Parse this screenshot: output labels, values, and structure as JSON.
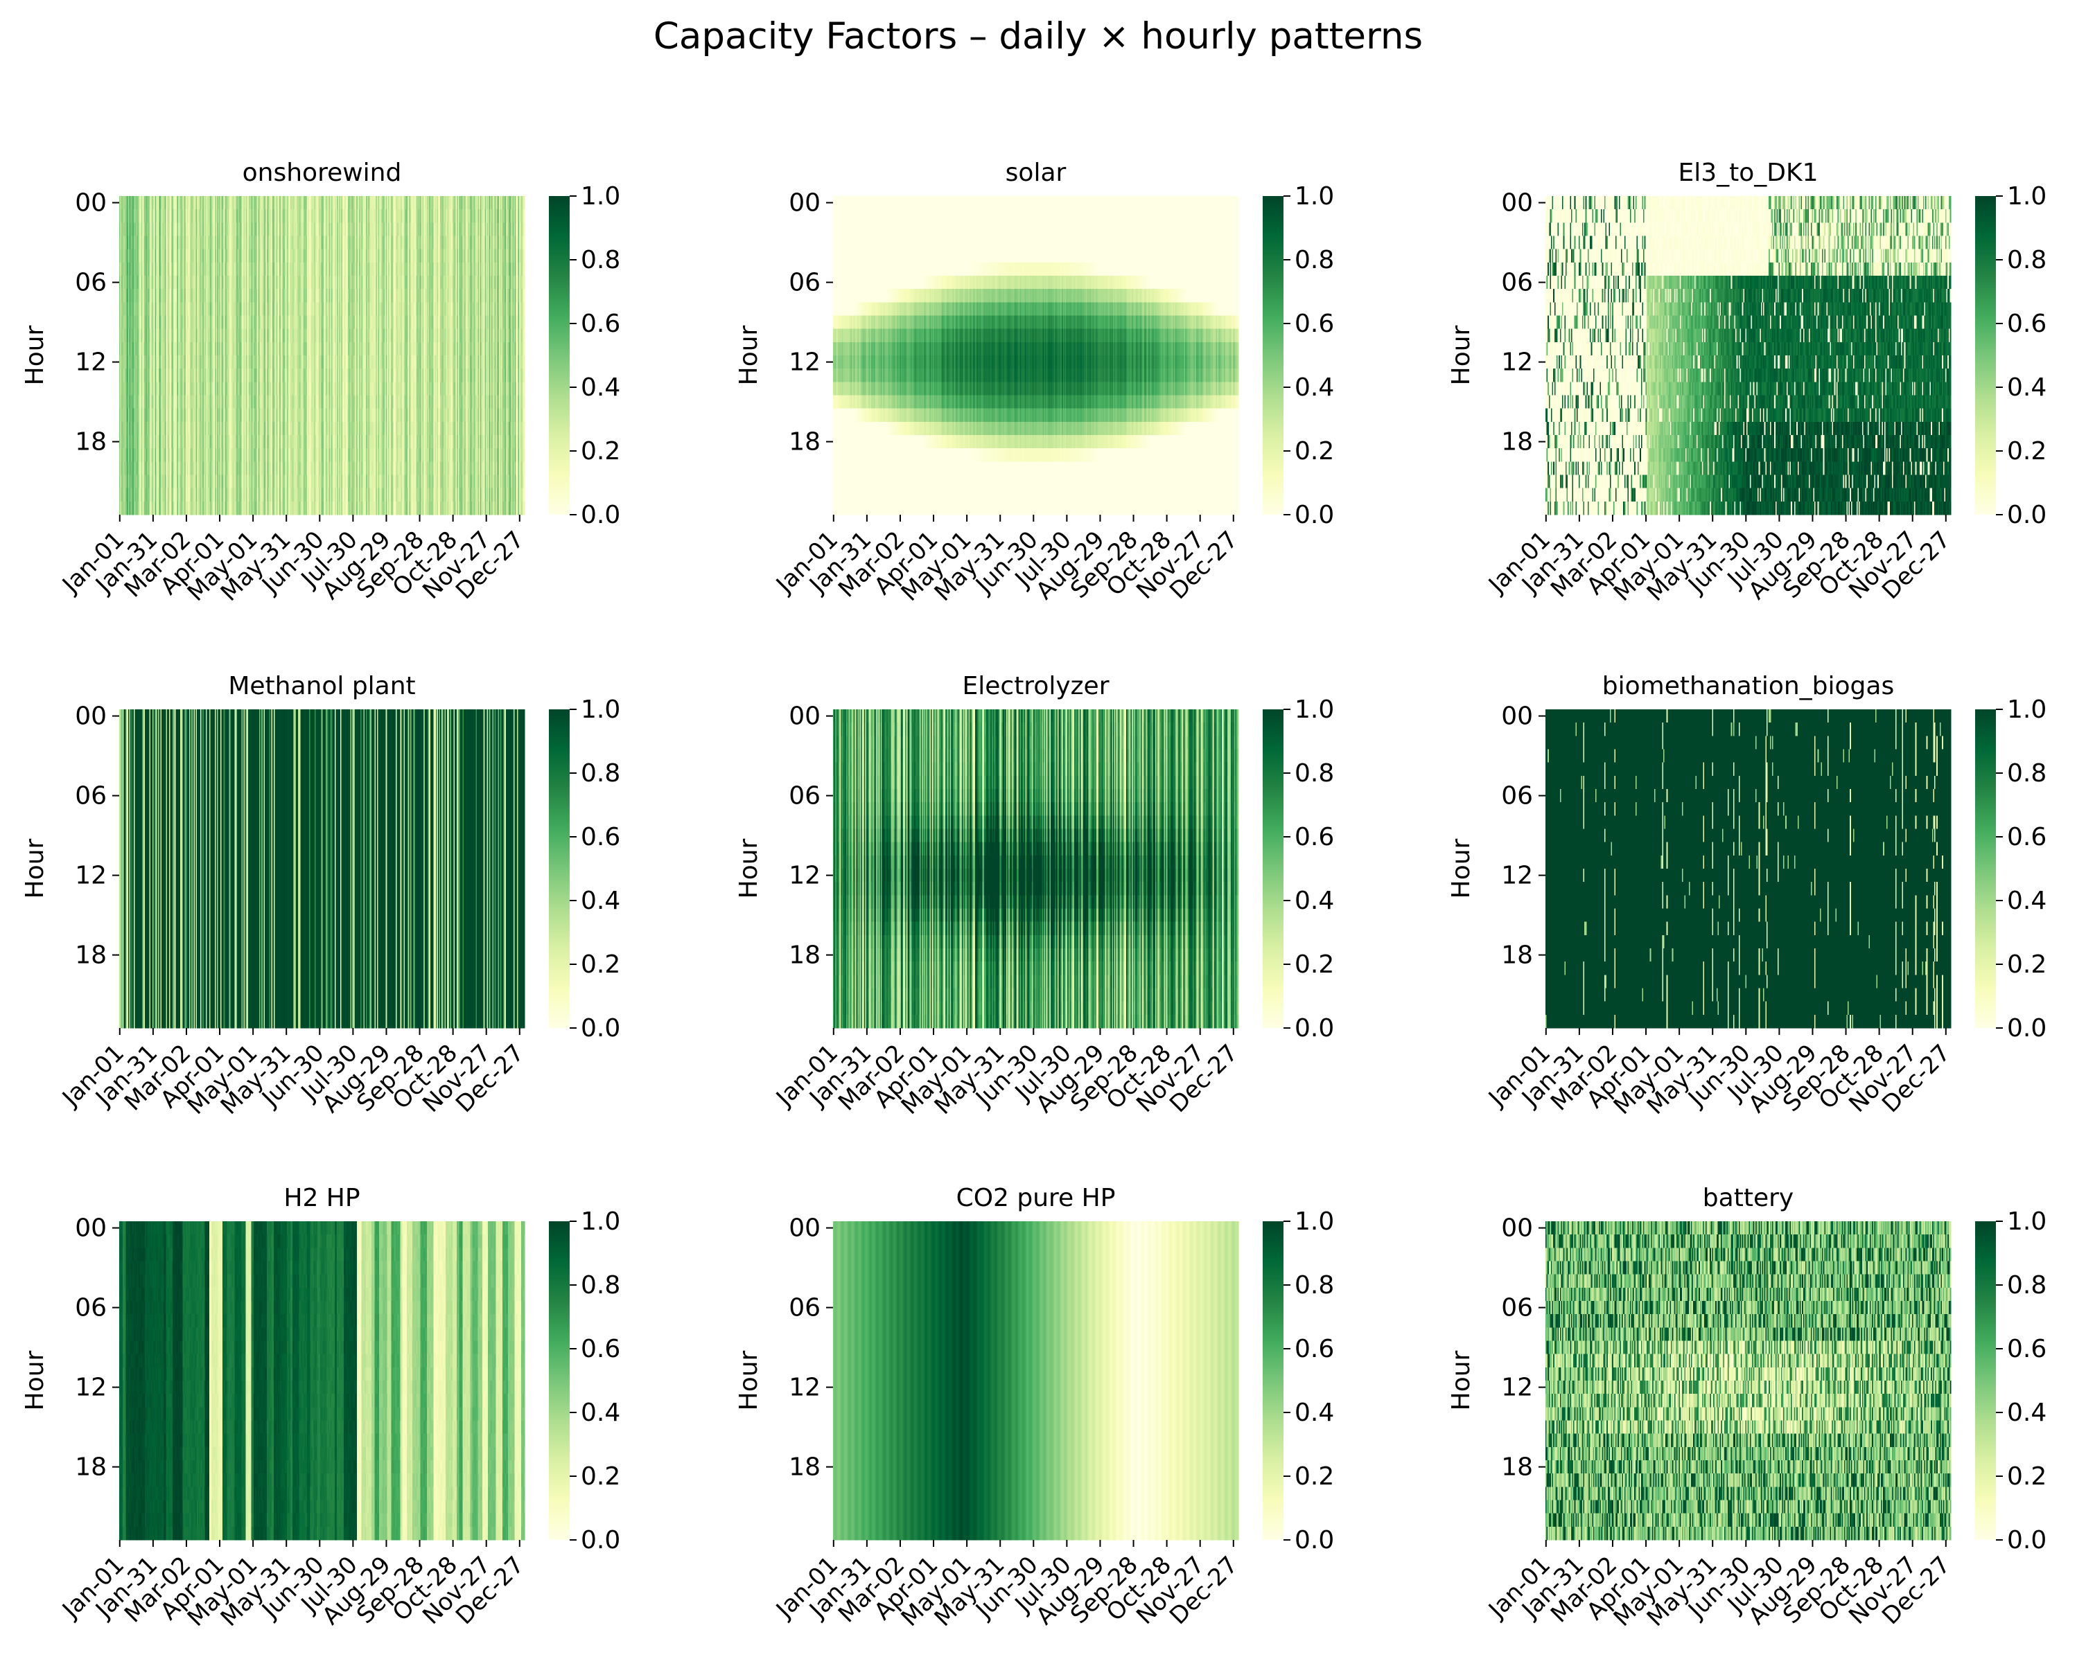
{
  "figure": {
    "title": "Capacity Factors – daily × hourly patterns",
    "colorscale": [
      "#ffffe5",
      "#f7fcb9",
      "#d9f0a3",
      "#addd8e",
      "#78c679",
      "#41ab5d",
      "#238443",
      "#006837",
      "#004529"
    ]
  },
  "chart_data": [
    {
      "type": "heatmap",
      "title": "onshorewind",
      "ylabel": "Hour",
      "xlabel": "",
      "x_ticklabels": [
        "Jan-01",
        "Jan-31",
        "Mar-02",
        "Apr-01",
        "May-01",
        "May-31",
        "Jun-30",
        "Jul-30",
        "Aug-29",
        "Sep-28",
        "Oct-28",
        "Nov-27",
        "Dec-27"
      ],
      "y_ticklabels": [
        "00",
        "06",
        "12",
        "18"
      ],
      "days": 365,
      "hours": 24,
      "zlim": [
        0,
        1
      ],
      "colorbar_ticks": [
        "0.0",
        "0.2",
        "0.4",
        "0.6",
        "0.8",
        "1.0"
      ],
      "pattern": "stochastic daily wind profile, mostly light-to-mid green; values ~0.15–0.65, slightly lower in summer"
    },
    {
      "type": "heatmap",
      "title": "solar",
      "ylabel": "Hour",
      "xlabel": "",
      "x_ticklabels": [
        "Jan-01",
        "Jan-31",
        "Mar-02",
        "Apr-01",
        "May-01",
        "May-31",
        "Jun-30",
        "Jul-30",
        "Aug-29",
        "Sep-28",
        "Oct-28",
        "Nov-27",
        "Dec-27"
      ],
      "y_ticklabels": [
        "00",
        "06",
        "12",
        "18"
      ],
      "days": 365,
      "hours": 24,
      "zlim": [
        0,
        1
      ],
      "colorbar_ticks": [
        "0.0",
        "0.2",
        "0.4",
        "0.6",
        "0.8",
        "1.0"
      ],
      "pattern": "zero at night; daytime peak around hour 12 (~0.6–0.8), longer days and higher peaks in summer"
    },
    {
      "type": "heatmap",
      "title": "El3_to_DK1",
      "ylabel": "Hour",
      "xlabel": "",
      "x_ticklabels": [
        "Jan-01",
        "Jan-31",
        "Mar-02",
        "Apr-01",
        "May-01",
        "May-31",
        "Jun-30",
        "Jul-30",
        "Aug-29",
        "Sep-28",
        "Oct-28",
        "Nov-27",
        "Dec-27"
      ],
      "y_ticklabels": [
        "00",
        "06",
        "12",
        "18"
      ],
      "days": 365,
      "hours": 24,
      "zlim": [
        0,
        1
      ],
      "colorbar_ticks": [
        "0.0",
        "0.2",
        "0.4",
        "0.6",
        "0.8",
        "1.0"
      ],
      "pattern": "sparse flows in first months; from ~April high (0.8–1.0) during hours 06–24, strongest in evening, night hours light"
    },
    {
      "type": "heatmap",
      "title": "Methanol plant",
      "ylabel": "Hour",
      "xlabel": "",
      "x_ticklabels": [
        "Jan-01",
        "Jan-31",
        "Mar-02",
        "Apr-01",
        "May-01",
        "May-31",
        "Jun-30",
        "Jul-30",
        "Aug-29",
        "Sep-28",
        "Oct-28",
        "Nov-27",
        "Dec-27"
      ],
      "y_ticklabels": [
        "00",
        "06",
        "12",
        "18"
      ],
      "days": 365,
      "hours": 24,
      "zlim": [
        0,
        1
      ],
      "colorbar_ticks": [
        "0.0",
        "0.2",
        "0.4",
        "0.6",
        "0.8",
        "1.0"
      ],
      "pattern": "mostly ~1.0 (dark green) with frequent light vertical stripes of low output"
    },
    {
      "type": "heatmap",
      "title": "Electrolyzer",
      "ylabel": "Hour",
      "xlabel": "",
      "x_ticklabels": [
        "Jan-01",
        "Jan-31",
        "Mar-02",
        "Apr-01",
        "May-01",
        "May-31",
        "Jun-30",
        "Jul-30",
        "Aug-29",
        "Sep-28",
        "Oct-28",
        "Nov-27",
        "Dec-27"
      ],
      "y_ticklabels": [
        "00",
        "06",
        "12",
        "18"
      ],
      "days": 365,
      "hours": 24,
      "zlim": [
        0,
        1
      ],
      "colorbar_ticks": [
        "0.0",
        "0.2",
        "0.4",
        "0.6",
        "0.8",
        "1.0"
      ],
      "pattern": "high and variable; darker daytime band around hour 12 in spring/summer, interleaved light stripes"
    },
    {
      "type": "heatmap",
      "title": "biomethanation_biogas",
      "ylabel": "Hour",
      "xlabel": "",
      "x_ticklabels": [
        "Jan-01",
        "Jan-31",
        "Mar-02",
        "Apr-01",
        "May-01",
        "May-31",
        "Jun-30",
        "Jul-30",
        "Aug-29",
        "Sep-28",
        "Oct-28",
        "Nov-27",
        "Dec-27"
      ],
      "y_ticklabels": [
        "00",
        "06",
        "12",
        "18"
      ],
      "days": 365,
      "hours": 24,
      "zlim": [
        0,
        1
      ],
      "colorbar_ticks": [
        "0.0",
        "0.2",
        "0.4",
        "0.6",
        "0.8",
        "1.0"
      ],
      "pattern": "almost entirely 1.0 (darkest green) with sparse thin light gaps"
    },
    {
      "type": "heatmap",
      "title": "H2 HP",
      "ylabel": "Hour",
      "xlabel": "",
      "x_ticklabels": [
        "Jan-01",
        "Jan-31",
        "Mar-02",
        "Apr-01",
        "May-01",
        "May-31",
        "Jun-30",
        "Jul-30",
        "Aug-29",
        "Sep-28",
        "Oct-28",
        "Nov-27",
        "Dec-27"
      ],
      "y_ticklabels": [
        "00",
        "06",
        "12",
        "18"
      ],
      "days": 365,
      "hours": 24,
      "zlim": [
        0,
        1
      ],
      "colorbar_ticks": [
        "0.0",
        "0.2",
        "0.4",
        "0.6",
        "0.8",
        "1.0"
      ],
      "pattern": "multi-day blocks; dark (0.8–1.0) in Jan–Jul, mid/light (0.2–0.6) in Aug–Dec"
    },
    {
      "type": "heatmap",
      "title": "CO2 pure HP",
      "ylabel": "Hour",
      "xlabel": "",
      "x_ticklabels": [
        "Jan-01",
        "Jan-31",
        "Mar-02",
        "Apr-01",
        "May-01",
        "May-31",
        "Jun-30",
        "Jul-30",
        "Aug-29",
        "Sep-28",
        "Oct-28",
        "Nov-27",
        "Dec-27"
      ],
      "y_ticklabels": [
        "00",
        "06",
        "12",
        "18"
      ],
      "days": 365,
      "hours": 24,
      "zlim": [
        0,
        1
      ],
      "colorbar_ticks": [
        "0.0",
        "0.2",
        "0.4",
        "0.6",
        "0.8",
        "1.0"
      ],
      "pattern": "constant across hours; smooth seasonal curve: ~0.5 in Jan, peak ~1.0 around late Apr, near 0 around Oct, ~0.3 in Dec"
    },
    {
      "type": "heatmap",
      "title": "battery",
      "ylabel": "Hour",
      "xlabel": "",
      "x_ticklabels": [
        "Jan-01",
        "Jan-31",
        "Mar-02",
        "Apr-01",
        "May-01",
        "May-31",
        "Jun-30",
        "Jul-30",
        "Aug-29",
        "Sep-28",
        "Oct-28",
        "Nov-27",
        "Dec-27"
      ],
      "y_ticklabels": [
        "00",
        "06",
        "12",
        "18"
      ],
      "days": 365,
      "hours": 24,
      "zlim": [
        0,
        1
      ],
      "colorbar_ticks": [
        "0.0",
        "0.2",
        "0.4",
        "0.6",
        "0.8",
        "1.0"
      ],
      "pattern": "noisy mid-green; lighter daytime hours in summer, darker stripes scattered"
    }
  ]
}
